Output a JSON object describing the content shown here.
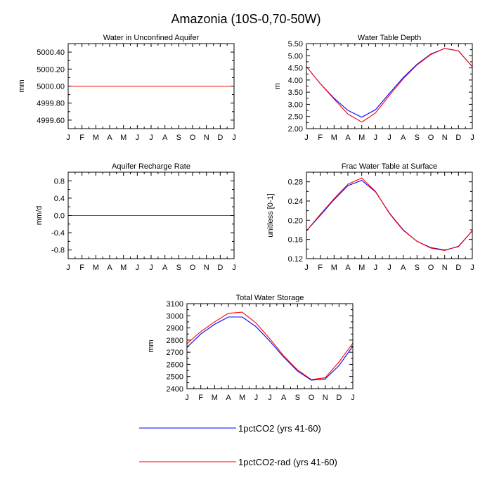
{
  "figure": {
    "title": "Amazonia (10S-0,70-50W)"
  },
  "colors": {
    "series_1": "#0000ff",
    "series_2": "#ff0000",
    "axis": "#000000"
  },
  "legend": {
    "placement": "bottom-center",
    "entries": [
      {
        "label": "1pctCO2 (yrs 41-60)",
        "color": "#0000ff"
      },
      {
        "label": "1pctCO2-rad (yrs 41-60)",
        "color": "#ff0000"
      }
    ]
  },
  "chart_data": [
    {
      "type": "line",
      "title": "Water in Unconfined Aquifer",
      "xlabel": "",
      "ylabel": "mm",
      "categories": [
        "J",
        "F",
        "M",
        "A",
        "M",
        "J",
        "J",
        "A",
        "S",
        "O",
        "N",
        "D",
        "J"
      ],
      "ylim": [
        4999.5,
        5000.5
      ],
      "yticks": [
        4999.6,
        4999.8,
        5000.0,
        5000.2,
        5000.4
      ],
      "ytick_labels": [
        "4999.60",
        "4999.80",
        "5000.00",
        "5000.20",
        "5000.40"
      ],
      "series": [
        {
          "name": "1pctCO2 (yrs 41-60)",
          "color": "#0000ff",
          "values": [
            5000,
            5000,
            5000,
            5000,
            5000,
            5000,
            5000,
            5000,
            5000,
            5000,
            5000,
            5000,
            5000
          ]
        },
        {
          "name": "1pctCO2-rad (yrs 41-60)",
          "color": "#ff0000",
          "values": [
            5000,
            5000,
            5000,
            5000,
            5000,
            5000,
            5000,
            5000,
            5000,
            5000,
            5000,
            5000,
            5000
          ]
        }
      ],
      "grid": false
    },
    {
      "type": "line",
      "title": "Water Table Depth",
      "xlabel": "",
      "ylabel": "m",
      "categories": [
        "J",
        "F",
        "M",
        "A",
        "M",
        "J",
        "J",
        "A",
        "S",
        "O",
        "N",
        "D",
        "J"
      ],
      "ylim": [
        2.0,
        5.5
      ],
      "yticks": [
        2.0,
        2.5,
        3.0,
        3.5,
        4.0,
        4.5,
        5.0,
        5.5
      ],
      "ytick_labels": [
        "2.00",
        "2.50",
        "3.00",
        "3.50",
        "4.00",
        "4.50",
        "5.00",
        "5.50"
      ],
      "series": [
        {
          "name": "1pctCO2 (yrs 41-60)",
          "color": "#0000ff",
          "values": [
            4.55,
            3.85,
            3.25,
            2.75,
            2.47,
            2.78,
            3.45,
            4.1,
            4.65,
            5.07,
            5.3,
            5.2,
            4.55
          ]
        },
        {
          "name": "1pctCO2-rad (yrs 41-60)",
          "color": "#ff0000",
          "values": [
            4.55,
            3.85,
            3.22,
            2.6,
            2.27,
            2.65,
            3.37,
            4.05,
            4.62,
            5.05,
            5.3,
            5.2,
            4.55
          ]
        }
      ],
      "grid": false
    },
    {
      "type": "line",
      "title": "Aquifer Recharge Rate",
      "xlabel": "",
      "ylabel": "mm/d",
      "categories": [
        "J",
        "F",
        "M",
        "A",
        "M",
        "J",
        "J",
        "A",
        "S",
        "O",
        "N",
        "D",
        "J"
      ],
      "ylim": [
        -1.0,
        1.0
      ],
      "yticks": [
        -0.8,
        -0.4,
        0.0,
        0.4,
        0.8
      ],
      "ytick_labels": [
        "-0.8",
        "-0.4",
        "0.0",
        "0.4",
        "0.8"
      ],
      "series": [
        {
          "name": "1pctCO2 (yrs 41-60)",
          "color": "#0000ff",
          "values": [
            0,
            0,
            0,
            0,
            0,
            0,
            0,
            0,
            0,
            0,
            0,
            0,
            0
          ]
        },
        {
          "name": "1pctCO2-rad (yrs 41-60)",
          "color": "#ff0000",
          "values": [
            0,
            0,
            0,
            0,
            0,
            0,
            0,
            0,
            0,
            0,
            0,
            0,
            0
          ]
        }
      ],
      "grid": false
    },
    {
      "type": "line",
      "title": "Frac Water Table at Surface",
      "xlabel": "",
      "ylabel": "unitless [0-1]",
      "categories": [
        "J",
        "F",
        "M",
        "A",
        "M",
        "J",
        "J",
        "A",
        "S",
        "O",
        "N",
        "D",
        "J"
      ],
      "ylim": [
        0.12,
        0.3
      ],
      "yticks": [
        0.12,
        0.16,
        0.2,
        0.24,
        0.28
      ],
      "ytick_labels": [
        "0.12",
        "0.16",
        "0.20",
        "0.24",
        "0.28"
      ],
      "series": [
        {
          "name": "1pctCO2 (yrs 41-60)",
          "color": "#0000ff",
          "values": [
            0.178,
            0.21,
            0.243,
            0.272,
            0.283,
            0.259,
            0.215,
            0.18,
            0.156,
            0.143,
            0.138,
            0.145,
            0.178
          ]
        },
        {
          "name": "1pctCO2-rad (yrs 41-60)",
          "color": "#ff0000",
          "values": [
            0.178,
            0.212,
            0.245,
            0.275,
            0.288,
            0.26,
            0.214,
            0.179,
            0.156,
            0.142,
            0.137,
            0.146,
            0.178
          ]
        }
      ],
      "grid": false
    },
    {
      "type": "line",
      "title": "Total Water Storage",
      "xlabel": "",
      "ylabel": "mm",
      "categories": [
        "J",
        "F",
        "M",
        "A",
        "M",
        "J",
        "J",
        "A",
        "S",
        "O",
        "N",
        "D",
        "J"
      ],
      "ylim": [
        2400,
        3100
      ],
      "yticks": [
        2400,
        2500,
        2600,
        2700,
        2800,
        2900,
        3000,
        3100
      ],
      "ytick_labels": [
        "2400",
        "2500",
        "2600",
        "2700",
        "2800",
        "2900",
        "3000",
        "3100"
      ],
      "series": [
        {
          "name": "1pctCO2 (yrs 41-60)",
          "color": "#0000ff",
          "values": [
            2740,
            2850,
            2930,
            2990,
            2990,
            2910,
            2790,
            2660,
            2545,
            2470,
            2480,
            2590,
            2750
          ]
        },
        {
          "name": "1pctCO2-rad (yrs 41-60)",
          "color": "#ff0000",
          "values": [
            2770,
            2870,
            2950,
            3020,
            3030,
            2940,
            2810,
            2670,
            2555,
            2475,
            2490,
            2620,
            2775
          ]
        }
      ],
      "grid": false
    }
  ]
}
